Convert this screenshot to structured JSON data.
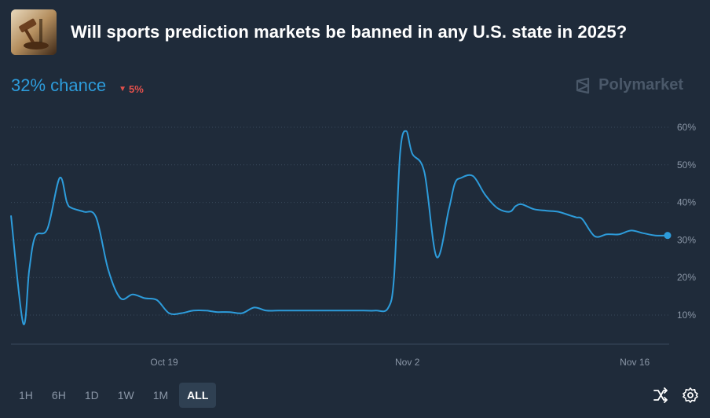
{
  "header": {
    "title": "Will sports prediction markets be banned in any U.S. state in 2025?"
  },
  "summary": {
    "chance": "32% chance",
    "delta": "5%",
    "delta_direction": "down",
    "brand": "Polymarket"
  },
  "colors": {
    "background": "#1f2b3a",
    "line": "#2d9cdb",
    "negative": "#e2504c",
    "grid": "#3a4a5c",
    "muted": "#8a96a6"
  },
  "controls": {
    "ranges": [
      "1H",
      "6H",
      "1D",
      "1W",
      "1M",
      "ALL"
    ],
    "selected": "ALL"
  },
  "tools": {
    "shuffle_icon": "shuffle-icon",
    "settings_icon": "gear-icon"
  },
  "chart_data": {
    "type": "line",
    "y_ticks": [
      "10%",
      "20%",
      "30%",
      "40%",
      "50%",
      "60%"
    ],
    "x_ticks": [
      "Oct 19",
      "Nov 2",
      "Nov 16"
    ],
    "ylim": [
      0,
      62
    ],
    "grid": true,
    "series": [
      {
        "color": "#2d9cdb",
        "x": [
          0,
          1,
          1.5,
          2,
          3,
          4,
          4.6,
          5,
          6,
          7,
          8,
          9,
          10,
          11,
          12,
          13,
          14,
          15,
          16,
          16.5,
          17,
          18,
          19,
          20,
          21,
          22,
          23,
          24,
          25,
          26,
          27,
          28,
          29,
          30,
          31,
          31.5,
          32,
          32.5,
          33,
          34,
          35,
          36,
          36.5,
          37,
          38,
          39,
          40,
          41,
          41.5,
          42,
          43,
          44,
          45,
          46,
          46.5,
          47,
          48,
          49,
          50,
          51,
          52,
          53,
          54
        ],
        "y": [
          36.5,
          7.8,
          22,
          31,
          33,
          46.5,
          40,
          38.5,
          37.5,
          36,
          22,
          14.5,
          15.5,
          14.5,
          14,
          10.5,
          10.5,
          11.2,
          11.2,
          11,
          10.8,
          10.8,
          10.5,
          12,
          11.2,
          11.2,
          11.2,
          11.2,
          11.2,
          11.2,
          11.2,
          11.2,
          11.2,
          11.2,
          11.8,
          20,
          53,
          59,
          53,
          48,
          25.5,
          38,
          45,
          46.5,
          47,
          42,
          38.5,
          37.5,
          39,
          39.5,
          38.2,
          37.8,
          37.5,
          36.5,
          36,
          35.5,
          31,
          31.5,
          31.5,
          32.5,
          31.8,
          31.2,
          31.2
        ]
      }
    ],
    "x_tick_positions": [
      12.6,
      32.6,
      51.3
    ],
    "x_range": [
      0,
      54
    ]
  }
}
